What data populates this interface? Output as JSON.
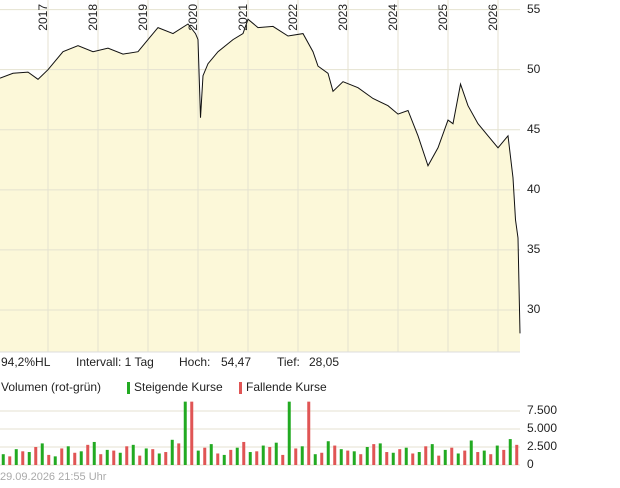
{
  "chart_data": [
    {
      "type": "line",
      "color": "#111111",
      "fill": "#fcf8d9",
      "grid": true,
      "x": [
        2016.04,
        2016.3,
        2016.6,
        2016.8,
        2017.0,
        2017.3,
        2017.6,
        2017.9,
        2018.2,
        2018.5,
        2018.8,
        2019.0,
        2019.2,
        2019.5,
        2019.8,
        2019.95,
        2020.0,
        2020.05,
        2020.1,
        2020.2,
        2020.4,
        2020.7,
        2020.9,
        2021.0,
        2021.2,
        2021.5,
        2021.8,
        2022.1,
        2022.3,
        2022.4,
        2022.6,
        2022.7,
        2022.9,
        2023.2,
        2023.5,
        2023.8,
        2024.0,
        2024.2,
        2024.4,
        2024.6,
        2024.8,
        2025.0,
        2025.1,
        2025.25,
        2025.4,
        2025.6,
        2025.8,
        2026.0,
        2026.2,
        2026.3,
        2026.35,
        2026.4,
        2026.44
      ],
      "values": [
        49.3,
        49.7,
        49.8,
        49.2,
        50.0,
        51.5,
        52.0,
        51.5,
        51.8,
        51.3,
        51.5,
        52.5,
        53.5,
        53.0,
        53.8,
        53.0,
        52.5,
        46.0,
        49.5,
        50.5,
        51.5,
        52.5,
        53.0,
        54.2,
        53.5,
        53.6,
        52.8,
        53.0,
        51.5,
        50.3,
        49.7,
        48.2,
        49.0,
        48.5,
        47.6,
        47.0,
        46.3,
        46.6,
        44.5,
        42.0,
        43.5,
        45.8,
        45.5,
        48.8,
        47.0,
        45.5,
        44.5,
        43.5,
        44.5,
        41.0,
        37.5,
        36.0,
        28.05
      ],
      "xlim": [
        2016.04,
        2026.44
      ],
      "xticks": [
        2017,
        2018,
        2019,
        2020,
        2021,
        2022,
        2023,
        2024,
        2025,
        2026
      ],
      "ylim": [
        26.5,
        55.8
      ],
      "yticks": [
        30,
        35,
        40,
        45,
        50,
        55
      ]
    },
    {
      "type": "bar",
      "title": "Volumen (rot-grün)",
      "grid": true,
      "series": [
        {
          "name": "Steigende Kurse",
          "color": "#22aa22",
          "values": [
            1500,
            2200,
            1800,
            3000,
            1200,
            2600,
            1900,
            3200,
            2100,
            1700,
            2800,
            2300,
            1600,
            3500,
            8800,
            2000,
            2900,
            1400,
            2400,
            1800,
            2700,
            3100,
            8800,
            2600,
            1500,
            3300,
            2200,
            1900,
            2500,
            3000,
            1700,
            2400,
            1800,
            2900,
            2100,
            1600,
            3400,
            2000,
            2700,
            3600
          ]
        },
        {
          "name": "Fallende Kurse",
          "color": "#e05555",
          "values": [
            1200,
            1900,
            2500,
            1400,
            2300,
            1700,
            2800,
            1500,
            2000,
            2600,
            1300,
            2200,
            1800,
            3000,
            8800,
            2400,
            1600,
            2100,
            3200,
            1900,
            2500,
            1400,
            2300,
            8800,
            1700,
            2700,
            2000,
            1500,
            2900,
            1800,
            2200,
            1600,
            2600,
            1300,
            2400,
            2000,
            1800,
            1500,
            2100,
            2800
          ]
        }
      ],
      "ylim": [
        0,
        8750
      ],
      "yticks": [
        0,
        {
          "value": 2500,
          "label": "2.500"
        },
        {
          "value": 5000,
          "label": "5.000"
        },
        {
          "value": 7500,
          "label": "7.500"
        }
      ]
    }
  ],
  "stats": {
    "hl": "94,2%HL",
    "interval": "Intervall: 1 Tag",
    "high_label": "Hoch:",
    "high": "54,47",
    "low_label": "Tief:",
    "low": "28,05"
  },
  "footer": "29.09.2026 21:55 Uhr"
}
